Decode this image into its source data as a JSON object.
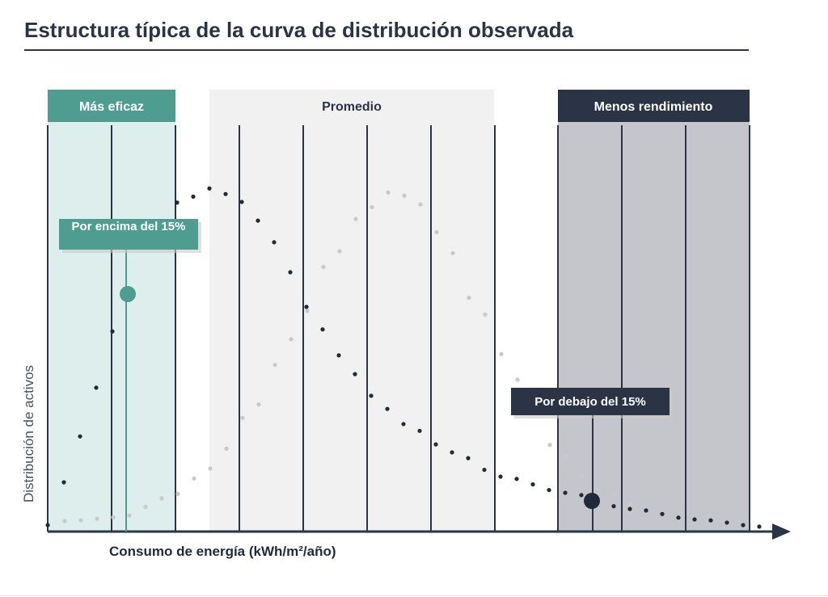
{
  "header": {
    "title": "Estructura típica de la curva de distribución observada"
  },
  "zones": [
    {
      "label": "Más eficaz",
      "color": "#4f9d91",
      "fill": "#ddeeec",
      "text_color": "#ffffff"
    },
    {
      "label": "Promedio",
      "color": "#f1f1f1",
      "fill": "#f1f1f1",
      "text_color": "#2a3444"
    },
    {
      "label": "Menos rendimiento",
      "color": "#2a3444",
      "fill": "#c4c6cb",
      "text_color": "#ffffff"
    }
  ],
  "callouts": {
    "top": {
      "text": "Por encima del 15%",
      "color": "#4f9d91"
    },
    "bottom": {
      "text": "Por debajo del 15%",
      "color": "#2a3444"
    }
  },
  "axes": {
    "x_label": "Consumo de energía (kWh/m²/año)",
    "y_label": "Distribución de activos"
  },
  "curves": {
    "observed_color": "#1f2a3a",
    "reference_color": "#c9c9c9"
  }
}
